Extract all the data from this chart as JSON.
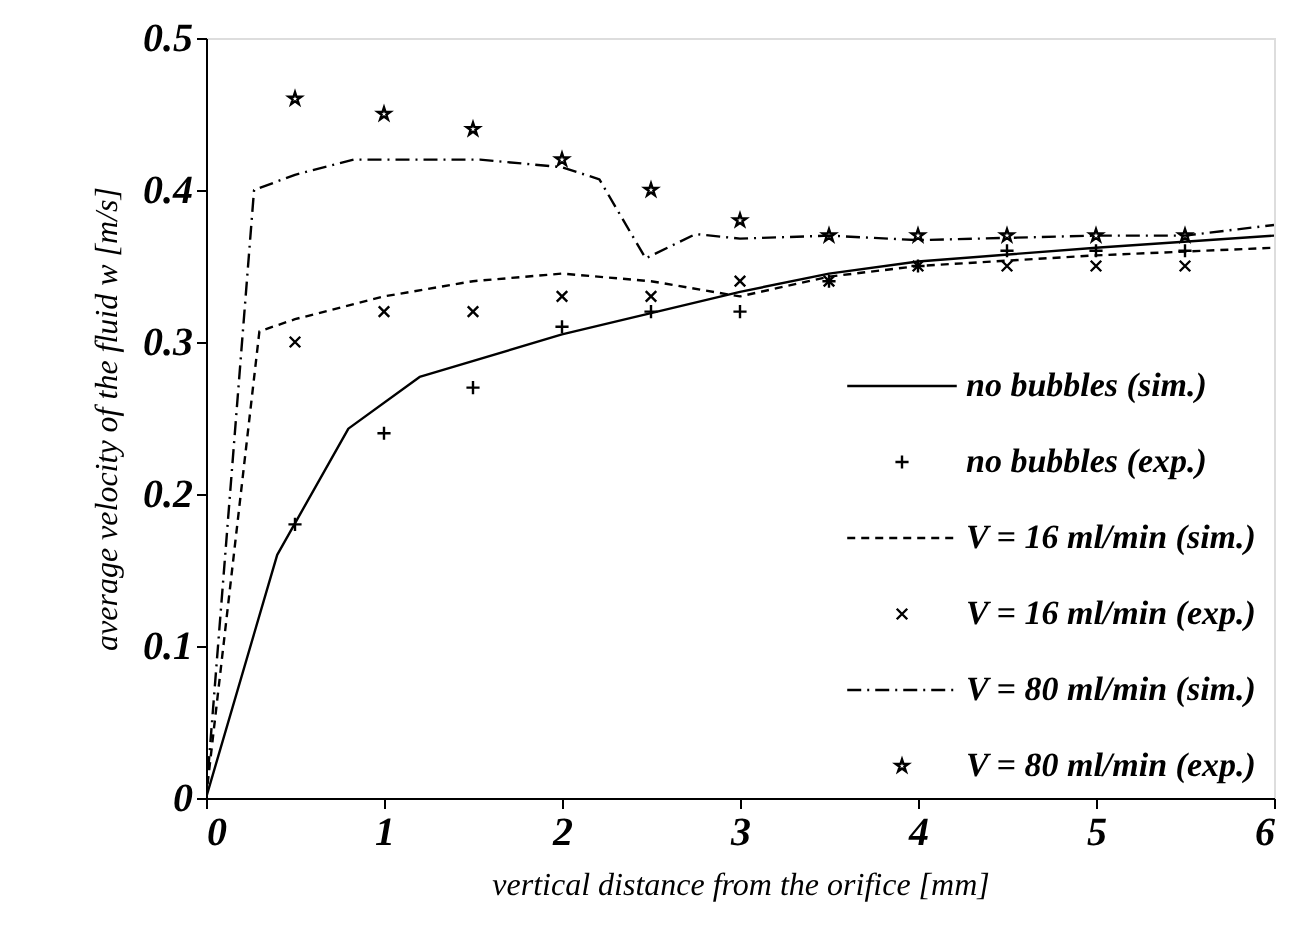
{
  "chart_data": {
    "type": "line",
    "xlabel": "vertical distance from the orifice [mm]",
    "ylabel": "average velocity of the fluid w [m/s]",
    "xlim": [
      0,
      6
    ],
    "xticks": [
      0,
      1,
      2,
      3,
      4,
      5,
      6
    ],
    "ylim": [
      0,
      0.5
    ],
    "yticks": [
      0,
      0.1,
      0.2,
      0.3,
      0.4,
      0.5
    ],
    "grid": false,
    "legend": "bottom right",
    "series": [
      {
        "name": "no bubbles (sim.)",
        "line_style": "solid",
        "marker": "none",
        "color": "#000000",
        "x": [
          0,
          0.4,
          0.8,
          1.2,
          2,
          3,
          3.5,
          4,
          5,
          6
        ],
        "values": [
          0,
          0.16,
          0.243,
          0.277,
          0.305,
          0.333,
          0.345,
          0.353,
          0.362,
          0.37
        ]
      },
      {
        "name": "no bubbles (exp.)",
        "type": "scatter",
        "marker": "cross",
        "color": "#000000",
        "x": [
          0.5,
          1,
          1.5,
          2,
          2.5,
          3,
          3.5,
          4,
          4.5,
          5,
          5.5
        ],
        "values": [
          0.18,
          0.24,
          0.27,
          0.31,
          0.32,
          0.32,
          0.34,
          0.35,
          0.36,
          0.36,
          0.36
        ]
      },
      {
        "name": "V = 16 ml/min (sim.)",
        "line_style": "dashed",
        "marker": "none",
        "color": "#000000",
        "x": [
          0,
          0.3,
          0.5,
          1,
          1.5,
          2,
          2.5,
          3,
          3.5,
          4,
          5,
          6
        ],
        "values": [
          0,
          0.307,
          0.315,
          0.33,
          0.34,
          0.345,
          0.34,
          0.33,
          0.343,
          0.35,
          0.357,
          0.362
        ]
      },
      {
        "name": "V = 16 ml/min (exp.)",
        "type": "scatter",
        "marker": "x",
        "color": "#000000",
        "x": [
          0.5,
          1,
          1.5,
          2,
          2.5,
          3,
          3.5,
          4,
          4.5,
          5,
          5.5
        ],
        "values": [
          0.3,
          0.32,
          0.32,
          0.33,
          0.33,
          0.34,
          0.34,
          0.35,
          0.35,
          0.35,
          0.35
        ]
      },
      {
        "name": "V = 80 ml/min (sim.)",
        "line_style": "dashdot",
        "marker": "none",
        "color": "#000000",
        "x": [
          0,
          0.27,
          0.5,
          0.83,
          1.54,
          2,
          2.21,
          2.47,
          2.75,
          3,
          3.5,
          4,
          5,
          5.5,
          6
        ],
        "values": [
          0,
          0.4,
          0.41,
          0.42,
          0.42,
          0.415,
          0.407,
          0.355,
          0.371,
          0.368,
          0.37,
          0.367,
          0.37,
          0.37,
          0.377
        ]
      },
      {
        "name": "V = 80 ml/min (exp.)",
        "type": "scatter",
        "marker": "star",
        "color": "#000000",
        "x": [
          0.5,
          1,
          1.5,
          2,
          2.5,
          3,
          3.5,
          4,
          4.5,
          5,
          5.5
        ],
        "values": [
          0.46,
          0.45,
          0.44,
          0.42,
          0.4,
          0.38,
          0.37,
          0.37,
          0.37,
          0.37,
          0.37
        ]
      }
    ]
  }
}
